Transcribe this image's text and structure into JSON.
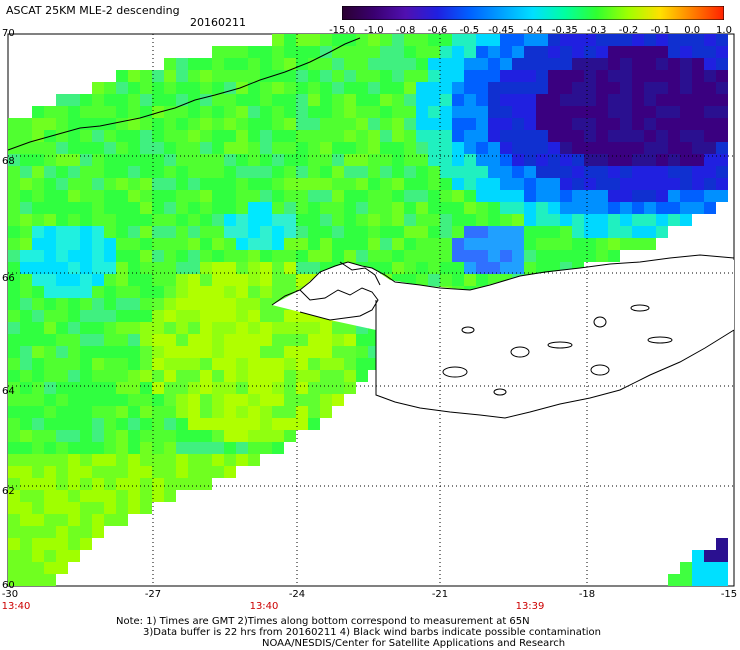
{
  "header": {
    "title": "ASCAT 25KM MLE-2 descending",
    "date": "20160211"
  },
  "colorbar": {
    "labels": [
      "-15.0",
      "-1.0",
      "-0.8",
      "-0.6",
      "-0.5",
      "-0.45",
      "-0.4",
      "-0.35",
      "-0.3",
      "-0.2",
      "-0.1",
      "0.0",
      "1.0"
    ],
    "colors": [
      "#2a0030",
      "#3a0070",
      "#5010b0",
      "#2020e0",
      "#0060ff",
      "#00a0ff",
      "#00e0ff",
      "#00ffa0",
      "#30ff30",
      "#a0ff00",
      "#ffe000",
      "#ff8000",
      "#ff2000"
    ]
  },
  "axes": {
    "lat_labels": [
      "70",
      "68",
      "66",
      "64",
      "62",
      "60"
    ],
    "lon_labels": [
      "-30",
      "-27",
      "-24",
      "-21",
      "-18",
      "-15"
    ],
    "times": [
      "13:40",
      "13:40",
      "13:39"
    ]
  },
  "notes": {
    "line1": "Note: 1) Times are GMT 2)Times along bottom correspond to measurement at 65N",
    "line2": "3)Data buffer is 22 hrs from 20160211 4) Black wind barbs indicate possible contamination",
    "line3": "NOAA/NESDIS/Center for Satellite Applications and Research"
  }
}
